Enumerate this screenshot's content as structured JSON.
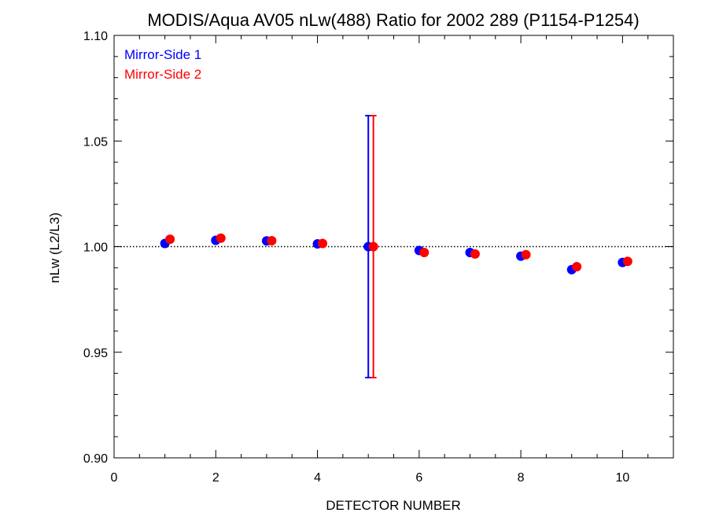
{
  "chart_data": {
    "type": "scatter",
    "title": "MODIS/Aqua AV05 nLw(488) Ratio for 2002 289 (P1154-P1254)",
    "xlabel": "DETECTOR NUMBER",
    "ylabel": "nLw (L2/L3)",
    "xlim": [
      0,
      11
    ],
    "ylim": [
      0.9,
      1.1
    ],
    "x_ticks": [
      0,
      2,
      4,
      6,
      8,
      10
    ],
    "x_tick_labels": [
      "0",
      "2",
      "4",
      "6",
      "8",
      "10"
    ],
    "y_ticks": [
      0.9,
      0.95,
      1.0,
      1.05,
      1.1
    ],
    "y_tick_labels": [
      "0.90",
      "0.95",
      "1.00",
      "1.05",
      "1.10"
    ],
    "reference_line": 1.0,
    "legend_position": "top-left",
    "series": [
      {
        "name": "Mirror-Side 1",
        "color": "#0000ff",
        "x": [
          1,
          2,
          3,
          4,
          5,
          6,
          7,
          8,
          9,
          10
        ],
        "values": [
          1.0015,
          1.003,
          1.0027,
          1.0013,
          1.0,
          0.9982,
          0.9972,
          0.9955,
          0.9891,
          0.9925
        ],
        "error_bars": [
          null,
          null,
          null,
          null,
          [
            0.938,
            1.062
          ],
          null,
          null,
          null,
          null,
          null
        ]
      },
      {
        "name": "Mirror-Side 2",
        "color": "#ff0000",
        "x": [
          1.1,
          2.1,
          3.1,
          4.1,
          5.1,
          6.1,
          7.1,
          8.1,
          9.1,
          10.1
        ],
        "values": [
          1.0035,
          1.004,
          1.0028,
          1.0015,
          1.0,
          0.9972,
          0.9965,
          0.9962,
          0.9905,
          0.993
        ],
        "error_bars": [
          null,
          null,
          null,
          null,
          [
            0.938,
            1.062
          ],
          null,
          null,
          null,
          null,
          null
        ]
      }
    ]
  }
}
